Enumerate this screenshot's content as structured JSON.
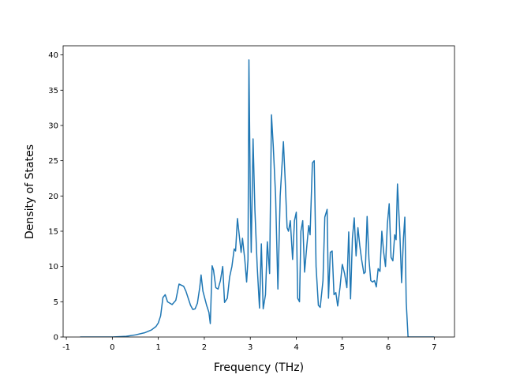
{
  "chart_data": {
    "type": "line",
    "x_label": "Frequency (THz)",
    "y_label": "Density of States",
    "color": "#1f77b4",
    "xlim": [
      -1.07,
      7.44
    ],
    "ylim": [
      0,
      41.3
    ],
    "xticks": [
      -1,
      0,
      1,
      2,
      3,
      4,
      5,
      6,
      7
    ],
    "yticks": [
      0,
      5,
      10,
      15,
      20,
      25,
      30,
      35,
      40
    ],
    "x": [
      -0.7,
      0,
      0.3,
      0.5,
      0.7,
      0.85,
      0.95,
      1.0,
      1.05,
      1.1,
      1.15,
      1.2,
      1.3,
      1.38,
      1.45,
      1.55,
      1.6,
      1.65,
      1.7,
      1.75,
      1.8,
      1.85,
      1.9,
      1.93,
      1.97,
      2.05,
      2.1,
      2.13,
      2.17,
      2.2,
      2.25,
      2.3,
      2.35,
      2.4,
      2.44,
      2.5,
      2.55,
      2.6,
      2.65,
      2.68,
      2.72,
      2.75,
      2.8,
      2.83,
      2.88,
      2.92,
      2.95,
      2.97,
      3.0,
      3.02,
      3.06,
      3.1,
      3.15,
      3.2,
      3.24,
      3.28,
      3.33,
      3.37,
      3.42,
      3.46,
      3.5,
      3.55,
      3.6,
      3.65,
      3.72,
      3.76,
      3.8,
      3.83,
      3.87,
      3.92,
      3.96,
      4.0,
      4.03,
      4.07,
      4.1,
      4.14,
      4.18,
      4.23,
      4.27,
      4.3,
      4.35,
      4.39,
      4.43,
      4.48,
      4.52,
      4.58,
      4.62,
      4.67,
      4.7,
      4.74,
      4.78,
      4.82,
      4.86,
      4.9,
      4.95,
      5.0,
      5.05,
      5.1,
      5.14,
      5.18,
      5.22,
      5.26,
      5.3,
      5.34,
      5.38,
      5.42,
      5.47,
      5.5,
      5.54,
      5.58,
      5.62,
      5.66,
      5.7,
      5.74,
      5.78,
      5.82,
      5.86,
      5.9,
      5.94,
      5.98,
      6.02,
      6.06,
      6.1,
      6.14,
      6.17,
      6.2,
      6.25,
      6.29,
      6.33,
      6.36,
      6.39,
      6.43,
      7.0
    ],
    "values": [
      0,
      0,
      0.1,
      0.3,
      0.6,
      1.0,
      1.5,
      2.0,
      3.0,
      5.6,
      6.0,
      5.0,
      4.6,
      5.2,
      7.5,
      7.2,
      6.5,
      5.5,
      4.5,
      3.9,
      4.0,
      4.8,
      7.0,
      8.8,
      6.5,
      4.5,
      3.5,
      1.9,
      10.1,
      9.5,
      7.0,
      6.8,
      8.0,
      10.0,
      4.9,
      5.5,
      8.5,
      10.0,
      12.5,
      12.2,
      16.8,
      15.0,
      12.0,
      14.0,
      11.0,
      7.8,
      11.0,
      39.3,
      20,
      12,
      28.1,
      18,
      10,
      4.1,
      13.2,
      4.0,
      6.0,
      13.5,
      9.0,
      31.5,
      27,
      20,
      6.8,
      20,
      27.7,
      22,
      15.5,
      15.0,
      16.5,
      11.0,
      16.5,
      17.7,
      5.5,
      5.0,
      15.0,
      16.5,
      9.2,
      13,
      15.8,
      14.5,
      24.7,
      25.0,
      10,
      4.5,
      4.2,
      8,
      17,
      18.1,
      5.5,
      12,
      12.2,
      6,
      6.3,
      4.4,
      7,
      10.3,
      9.0,
      7.0,
      14.9,
      5.4,
      14.0,
      16.9,
      11.5,
      15.5,
      13,
      11,
      9,
      9.2,
      17.1,
      11,
      8,
      7.8,
      8,
      7.1,
      9.7,
      9.3,
      15,
      12,
      10,
      16,
      18.9,
      11.3,
      10.8,
      14.5,
      13.8,
      21.7,
      15,
      7.7,
      14,
      17,
      5,
      0,
      0
    ]
  }
}
